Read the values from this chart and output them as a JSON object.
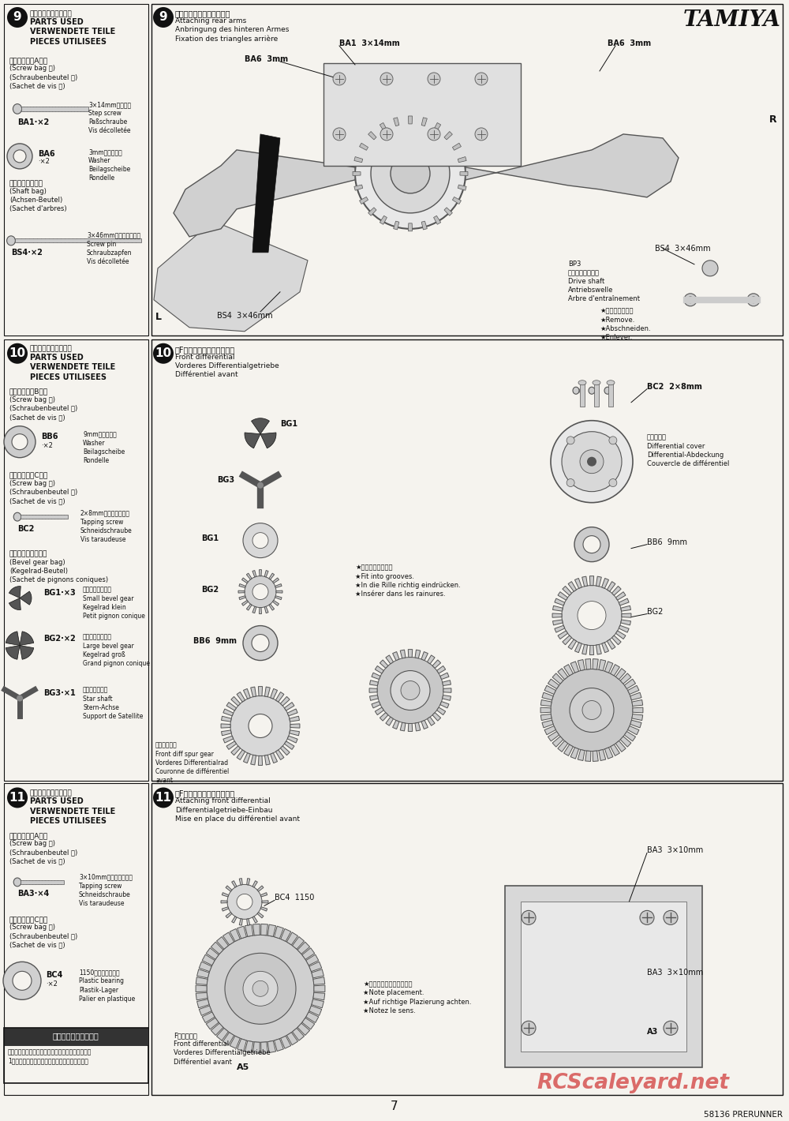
{
  "title": "TAMIYA",
  "page_number": "7",
  "model_number": "58136 PRERUNNER",
  "bg": "#f5f3ee",
  "white": "#ffffff",
  "black": "#111111",
  "gray": "#888888",
  "lgray": "#cccccc",
  "dgray": "#555555",
  "s9_parts_jp": "（使用する小物金具）",
  "s9_parts_en": "PARTS USED\nVERWENDETE TEILE\nPIECES UTILISEES",
  "s9_screw_a_jp": "（ビス袋詰（A））",
  "s9_screw_a": "(Screw bag Ⓐ)\n(Schraubenbeutel Ⓐ)\n(Sachet de vis Ⓐ)",
  "s9_ba1_label": "BA1·×2",
  "s9_ba1_desc": "3×14mm段付ピス\nStep screw\nPaßschraube\nVis décolletée",
  "s9_ba6_label": "BA6\n·×2",
  "s9_ba6_desc": "3mmワッシャー\nWasher\nBeilagscheibe\nRondelle",
  "s9_shaft_jp": "（シャフト袋詰）",
  "s9_shaft_en": "(Shaft bag)\n(Achsen-Beutel)\n(Sachet d'arbres)",
  "s9_bs4_label": "BS4·×2",
  "s9_bs4_desc": "3×46mmスクリューピン\nScrew pin\nSchraubzapfen\nVis décolletée",
  "s9_diag_jp": "（リヤアームの取り付け）",
  "s9_diag_en": "Attaching rear arms\nAnbringung des hinteren Armes\nFixation des triangles arrière",
  "s10_parts_jp": "（使用する小物金具）",
  "s10_parts_en": "PARTS USED\nVERWENDETE TEILE\nPIECES UTILISEES",
  "s10_screw_b_jp": "（ビス袋詰（B））",
  "s10_screw_b": "(Screw bag Ⓑ)\n(Schraubenbeutel Ⓑ)\n(Sachet de vis Ⓑ)",
  "s10_bb6_label": "BB6\n·×2",
  "s10_bb6_desc": "9mmワッシャー\nWasher\nBeilagscheibe\nRondelle",
  "s10_screw_c_jp": "（ビス袋詰（C））",
  "s10_screw_c": "(Screw bag Ⓒ)\n(Schraubenbeutel Ⓒ)\n(Sachet de vis Ⓒ)",
  "s10_bc2_label": "BC2",
  "s10_bc2_desc": "2×8mmタッピングピス\nTapping screw\nSchneidschraube\nVis taraudeuse",
  "s10_bevel_jp": "（ベベルギア袋詰）",
  "s10_bevel_en": "(Bevel gear bag)\n(Kegelrad-Beutel)\n(Sachet de pignons coniques)",
  "s10_bg1_label": "BG1·×3",
  "s10_bg1_desc": "ベベルギア（小）\nSmall bevel gear\nKegelrad klein\nPetit pignon conique",
  "s10_bg2_label": "BG2·×2",
  "s10_bg2_desc": "ベベルギア（大）\nLarge bevel gear\nKegelrad groß\nGrand pignon conique",
  "s10_bg3_label": "BG3·×1",
  "s10_bg3_desc": "スターシャフト\nStar shaft\nStern-Achse\nSupport de Satellite",
  "s10_diag_jp": "（Fデフギヤーのくみたて）",
  "s10_diag_en": "Front differential\nVorderes Differentialgetriebe\nDifférentiel avant",
  "s11_parts_jp": "（使用する小物金具）",
  "s11_parts_en": "PARTS USED\nVERWENDETE TEILE\nPIECES UTILISEES",
  "s11_screw_a_jp": "（ビス袋詰（A））",
  "s11_screw_a": "(Screw bag Ⓐ)\n(Schraubenbeutel Ⓐ)\n(Sachet de vis Ⓐ)",
  "s11_ba3_label": "BA3·×4",
  "s11_ba3_desc": "3×10mmタッピングピス\nTapping screw\nSchneidschraube\nVis taraudeuse",
  "s11_screw_c_jp": "（ビス袋詰（C））",
  "s11_screw_c": "(Screw bag Ⓒ)\n(Schraubenbeutel Ⓒ)\n(Sachet de vis Ⓒ)",
  "s11_bc4_label": "BC4\n·×2",
  "s11_bc4_desc": "1150プラベアリング\nPlastic bearing\nPlastik-Lager\nPalier en plastique",
  "s11_diag_jp": "（Fデフギヤーの取り付け）",
  "s11_diag_en": "Attaching front differential\nDifferentialgetriebe-Einbau\nMise en place du différentiel avant",
  "catalog_jp": "タミヤの総合カタログ",
  "catalog_body": "タミヤの全商品を詳しく紹介した総合カタログは年\n1回発行。ご購請の方は販売店でお尋ね下さい。"
}
